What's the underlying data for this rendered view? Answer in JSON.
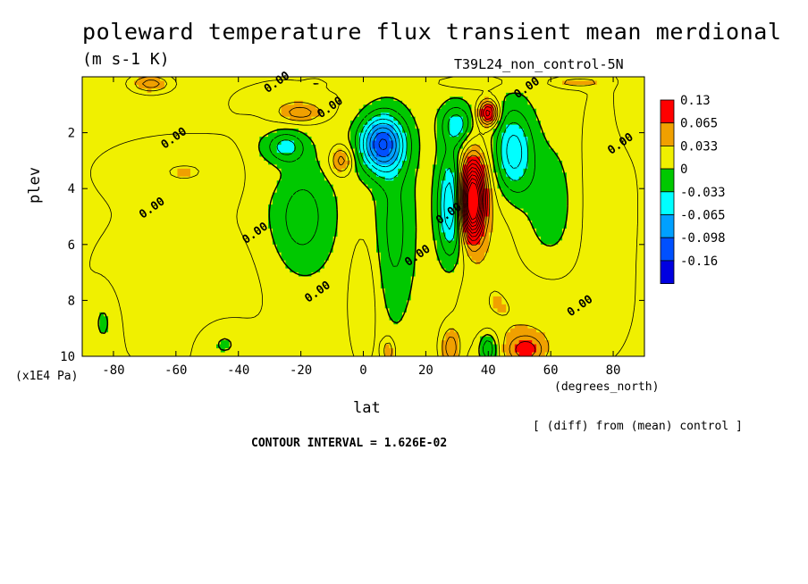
{
  "chart_data": {
    "type": "heatmap",
    "title": "poleward temperature flux transient mean merdional",
    "units": "(m s-1 K)",
    "run_label": "T39L24_non_control-5N",
    "xlabel": "lat",
    "xunits": "(degrees_north)",
    "ylabel": "plev",
    "yunits": "(x1E4 Pa)",
    "xlim": [
      -90,
      90
    ],
    "ylim": [
      10,
      0
    ],
    "xticks": [
      -80,
      -60,
      -40,
      -20,
      0,
      20,
      40,
      60,
      80
    ],
    "yticks": [
      2,
      4,
      6,
      8,
      10
    ],
    "contour_interval_text": "CONTOUR INTERVAL = 1.626E-02",
    "diff_note": "[ (diff) from (mean) control ]",
    "legend_levels": [
      "0.13",
      "0.065",
      "0.033",
      "0",
      "-0.033",
      "-0.065",
      "-0.098",
      "-0.16"
    ],
    "legend_colors": [
      "#ff0000",
      "#f0a000",
      "#f0f000",
      "#00c800",
      "#00ffff",
      "#00a0ff",
      "#0050ff",
      "#0000e0"
    ],
    "contour_labels": [
      {
        "text": "0.00",
        "lon": -27,
        "lev": 0.3
      },
      {
        "text": "0.00",
        "lon": -10,
        "lev": 1.2
      },
      {
        "text": "0.00",
        "lon": -60,
        "lev": 2.3
      },
      {
        "text": "0.00",
        "lon": -67,
        "lev": 4.8
      },
      {
        "text": "0.00",
        "lon": -34,
        "lev": 5.7
      },
      {
        "text": "0.00",
        "lon": -14,
        "lev": 7.8
      },
      {
        "text": "0.00",
        "lon": 18,
        "lev": 6.5
      },
      {
        "text": "0.00",
        "lon": 28,
        "lev": 5.0
      },
      {
        "text": "0.00",
        "lon": 53,
        "lev": 0.5
      },
      {
        "text": "0.00",
        "lon": 83,
        "lev": 2.5
      },
      {
        "text": "0.00",
        "lon": 70,
        "lev": 8.3
      }
    ],
    "anomalies": [
      {
        "lon": 35,
        "lev": 4.2,
        "rx": 4,
        "ry": 1.3,
        "value": 0.17
      },
      {
        "lon": 35,
        "lev": 5.0,
        "rx": 3,
        "ry": 1.0,
        "value": 0.06
      },
      {
        "lon": 28,
        "lev": 4.6,
        "rx": 4,
        "ry": 1.8,
        "value": -0.08
      },
      {
        "lon": 6,
        "lev": 2.4,
        "rx": 7,
        "ry": 1.0,
        "value": -0.12
      },
      {
        "lon": 48,
        "lev": 2.7,
        "rx": 6,
        "ry": 1.5,
        "value": -0.07
      },
      {
        "lon": 30,
        "lev": 1.7,
        "rx": 5,
        "ry": 0.7,
        "value": -0.05
      },
      {
        "lon": 40,
        "lev": 1.3,
        "rx": 3,
        "ry": 0.45,
        "value": 0.1
      },
      {
        "lon": -25,
        "lev": 2.5,
        "rx": 6,
        "ry": 0.55,
        "value": -0.05
      },
      {
        "lon": -7,
        "lev": 3.0,
        "rx": 3.5,
        "ry": 0.5,
        "value": 0.05
      },
      {
        "lon": -20,
        "lev": 1.3,
        "rx": 6,
        "ry": 0.3,
        "value": 0.04
      },
      {
        "lon": -68,
        "lev": 0.25,
        "rx": 6,
        "ry": 0.3,
        "value": 0.05
      },
      {
        "lon": -15,
        "lev": 0.25,
        "rx": 3,
        "ry": 0.12,
        "value": 0.02
      },
      {
        "lon": 52,
        "lev": 9.8,
        "rx": 6,
        "ry": 0.55,
        "value": 0.06
      },
      {
        "lon": 28,
        "lev": 9.7,
        "rx": 3,
        "ry": 0.7,
        "value": 0.05
      },
      {
        "lon": 40,
        "lev": 9.7,
        "rx": 3,
        "ry": 0.6,
        "value": -0.05
      },
      {
        "lon": 8,
        "lev": 9.8,
        "rx": 2,
        "ry": 0.5,
        "value": 0.04
      },
      {
        "lon": 68,
        "lev": 0.2,
        "rx": 8,
        "ry": 0.2,
        "value": 0.03
      },
      {
        "lon": -57,
        "lev": 3.3,
        "rx": 28,
        "ry": 1.2,
        "value": 0.022
      },
      {
        "lon": -60,
        "lev": 7.5,
        "rx": 30,
        "ry": 3.0,
        "value": 0.022
      },
      {
        "lon": 78,
        "lev": 4.5,
        "rx": 10,
        "ry": 5.0,
        "value": 0.022
      },
      {
        "lon": 0,
        "lev": 8.0,
        "rx": 5,
        "ry": 2.5,
        "value": 0.022
      },
      {
        "lon": 40,
        "lev": 6.0,
        "rx": 10,
        "ry": 3.5,
        "value": 0.018
      },
      {
        "lon": 55,
        "lev": 8.5,
        "rx": 22,
        "ry": 1.6,
        "value": 0.02
      },
      {
        "lon": -25,
        "lev": 0.9,
        "rx": 20,
        "ry": 0.9,
        "value": 0.018
      },
      {
        "lon": 35,
        "lev": 0.2,
        "rx": 12,
        "ry": 0.25,
        "value": 0.02
      },
      {
        "lon": -5,
        "lev": 0.2,
        "rx": 8,
        "ry": 0.2,
        "value": -0.01
      },
      {
        "lon": -35,
        "lev": 3.0,
        "rx": 5,
        "ry": 1.5,
        "value": -0.01
      },
      {
        "lon": -20,
        "lev": 5.0,
        "rx": 10,
        "ry": 2.0,
        "value": -0.035
      },
      {
        "lon": 10,
        "lev": 5.5,
        "rx": 6,
        "ry": 3.0,
        "value": -0.03
      },
      {
        "lon": -45,
        "lev": 9.5,
        "rx": 8,
        "ry": 0.8,
        "value": -0.02
      },
      {
        "lon": -83,
        "lev": 8.7,
        "rx": 5,
        "ry": 1.2,
        "value": -0.02
      },
      {
        "lon": 60,
        "lev": 4.5,
        "rx": 8,
        "ry": 2.0,
        "value": -0.02
      },
      {
        "lon": 85,
        "lev": 1.5,
        "rx": 6,
        "ry": 1.3,
        "value": -0.01
      }
    ]
  }
}
